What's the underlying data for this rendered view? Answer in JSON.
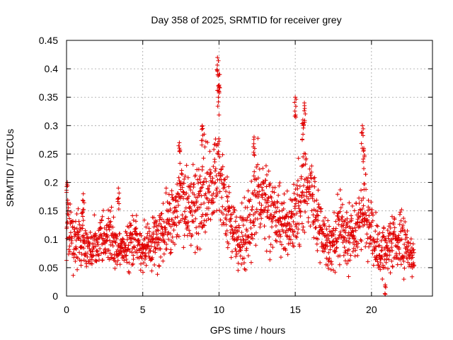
{
  "chart_data": {
    "type": "scatter",
    "title": "Day 358 of 2025, SRMTID for receiver grey",
    "xlabel": "GPS time / hours",
    "ylabel": "SRMTID / TECUs",
    "xlim": [
      0,
      24
    ],
    "ylim": [
      0,
      0.45
    ],
    "x_ticks": [
      0,
      5,
      10,
      15,
      20
    ],
    "x_tick_labels": [
      "0",
      "5",
      "10",
      "15",
      "20"
    ],
    "y_ticks": [
      0,
      0.05,
      0.1,
      0.15,
      0.2,
      0.25,
      0.3,
      0.35,
      0.4,
      0.45
    ],
    "y_tick_labels": [
      "0",
      "0.05",
      "0.1",
      "0.15",
      "0.2",
      "0.25",
      "0.3",
      "0.35",
      "0.4",
      "0.45"
    ],
    "grid": true,
    "marker": "plus",
    "color": "#e00000",
    "series": [
      {
        "name": "SRMTID",
        "profile": [
          {
            "x": 0.0,
            "y": 0.12
          },
          {
            "x": 0.5,
            "y": 0.1
          },
          {
            "x": 1.0,
            "y": 0.11
          },
          {
            "x": 1.5,
            "y": 0.08
          },
          {
            "x": 2.0,
            "y": 0.09
          },
          {
            "x": 2.5,
            "y": 0.11
          },
          {
            "x": 3.0,
            "y": 0.1
          },
          {
            "x": 3.5,
            "y": 0.08
          },
          {
            "x": 4.0,
            "y": 0.09
          },
          {
            "x": 4.5,
            "y": 0.1
          },
          {
            "x": 5.0,
            "y": 0.08
          },
          {
            "x": 5.5,
            "y": 0.09
          },
          {
            "x": 6.0,
            "y": 0.1
          },
          {
            "x": 6.5,
            "y": 0.12
          },
          {
            "x": 7.0,
            "y": 0.14
          },
          {
            "x": 7.5,
            "y": 0.18
          },
          {
            "x": 8.0,
            "y": 0.15
          },
          {
            "x": 8.5,
            "y": 0.15
          },
          {
            "x": 9.0,
            "y": 0.17
          },
          {
            "x": 9.5,
            "y": 0.19
          },
          {
            "x": 10.0,
            "y": 0.22
          },
          {
            "x": 10.5,
            "y": 0.16
          },
          {
            "x": 11.0,
            "y": 0.11
          },
          {
            "x": 11.5,
            "y": 0.1
          },
          {
            "x": 12.0,
            "y": 0.12
          },
          {
            "x": 12.5,
            "y": 0.18
          },
          {
            "x": 13.0,
            "y": 0.17
          },
          {
            "x": 13.5,
            "y": 0.14
          },
          {
            "x": 14.0,
            "y": 0.13
          },
          {
            "x": 14.5,
            "y": 0.12
          },
          {
            "x": 15.0,
            "y": 0.14
          },
          {
            "x": 15.5,
            "y": 0.18
          },
          {
            "x": 16.0,
            "y": 0.19
          },
          {
            "x": 16.5,
            "y": 0.13
          },
          {
            "x": 17.0,
            "y": 0.09
          },
          {
            "x": 17.5,
            "y": 0.09
          },
          {
            "x": 18.0,
            "y": 0.13
          },
          {
            "x": 18.5,
            "y": 0.1
          },
          {
            "x": 19.0,
            "y": 0.11
          },
          {
            "x": 19.5,
            "y": 0.16
          },
          {
            "x": 20.0,
            "y": 0.1
          },
          {
            "x": 20.5,
            "y": 0.08
          },
          {
            "x": 21.0,
            "y": 0.08
          },
          {
            "x": 21.5,
            "y": 0.1
          },
          {
            "x": 22.0,
            "y": 0.09
          },
          {
            "x": 22.5,
            "y": 0.08
          },
          {
            "x": 22.8,
            "y": 0.07
          }
        ],
        "peaks": [
          {
            "x": 0.05,
            "y": 0.2
          },
          {
            "x": 1.1,
            "y": 0.18
          },
          {
            "x": 3.4,
            "y": 0.19
          },
          {
            "x": 7.4,
            "y": 0.27
          },
          {
            "x": 8.9,
            "y": 0.3
          },
          {
            "x": 9.9,
            "y": 0.42
          },
          {
            "x": 10.0,
            "y": 0.39
          },
          {
            "x": 9.95,
            "y": 0.37
          },
          {
            "x": 12.3,
            "y": 0.28
          },
          {
            "x": 15.0,
            "y": 0.35
          },
          {
            "x": 15.6,
            "y": 0.34
          },
          {
            "x": 15.5,
            "y": 0.31
          },
          {
            "x": 19.4,
            "y": 0.3
          },
          {
            "x": 19.5,
            "y": 0.26
          },
          {
            "x": 20.9,
            "y": 0.02
          }
        ]
      }
    ]
  }
}
